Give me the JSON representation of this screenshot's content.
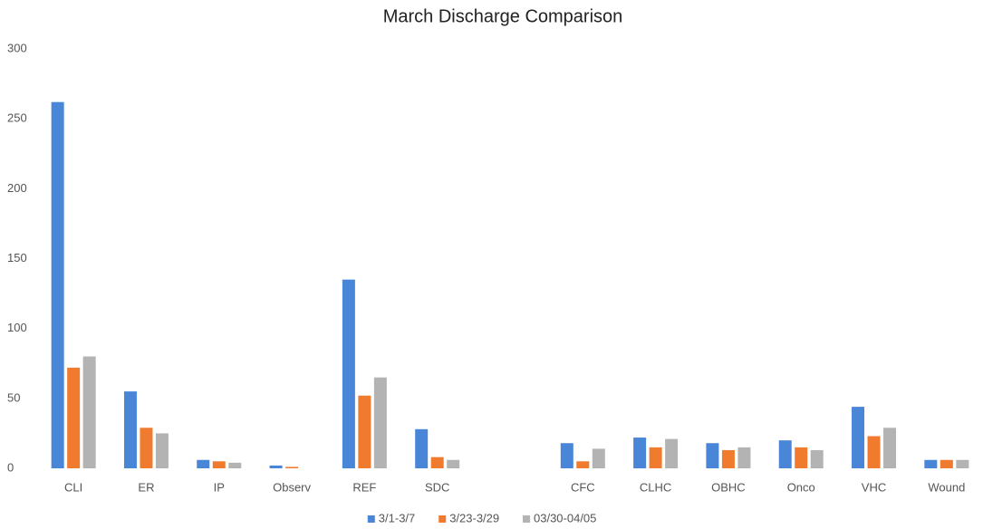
{
  "chart_data": {
    "type": "bar",
    "title": "March Discharge Comparison",
    "categories": [
      "CLI",
      "ER",
      "IP",
      "Observ",
      "REF",
      "SDC",
      null,
      "CFC",
      "CLHC",
      "OBHC",
      "Onco",
      "VHC",
      "Wound"
    ],
    "series": [
      {
        "name": "3/1-3/7",
        "color": "#4a86d8",
        "values": [
          262,
          55,
          6,
          2,
          135,
          28,
          null,
          18,
          22,
          18,
          20,
          44,
          6
        ]
      },
      {
        "name": "3/23-3/29",
        "color": "#f07a2e",
        "values": [
          72,
          29,
          5,
          1,
          52,
          8,
          null,
          5,
          15,
          13,
          15,
          23,
          6
        ]
      },
      {
        "name": "03/30-04/05",
        "color": "#b3b3b3",
        "values": [
          80,
          25,
          4,
          0,
          65,
          6,
          null,
          14,
          21,
          15,
          13,
          29,
          6
        ]
      }
    ],
    "ylim": [
      0,
      300
    ],
    "yticks": [
      0,
      50,
      100,
      150,
      200,
      250,
      300
    ],
    "grid": false,
    "legend": "bottom"
  }
}
